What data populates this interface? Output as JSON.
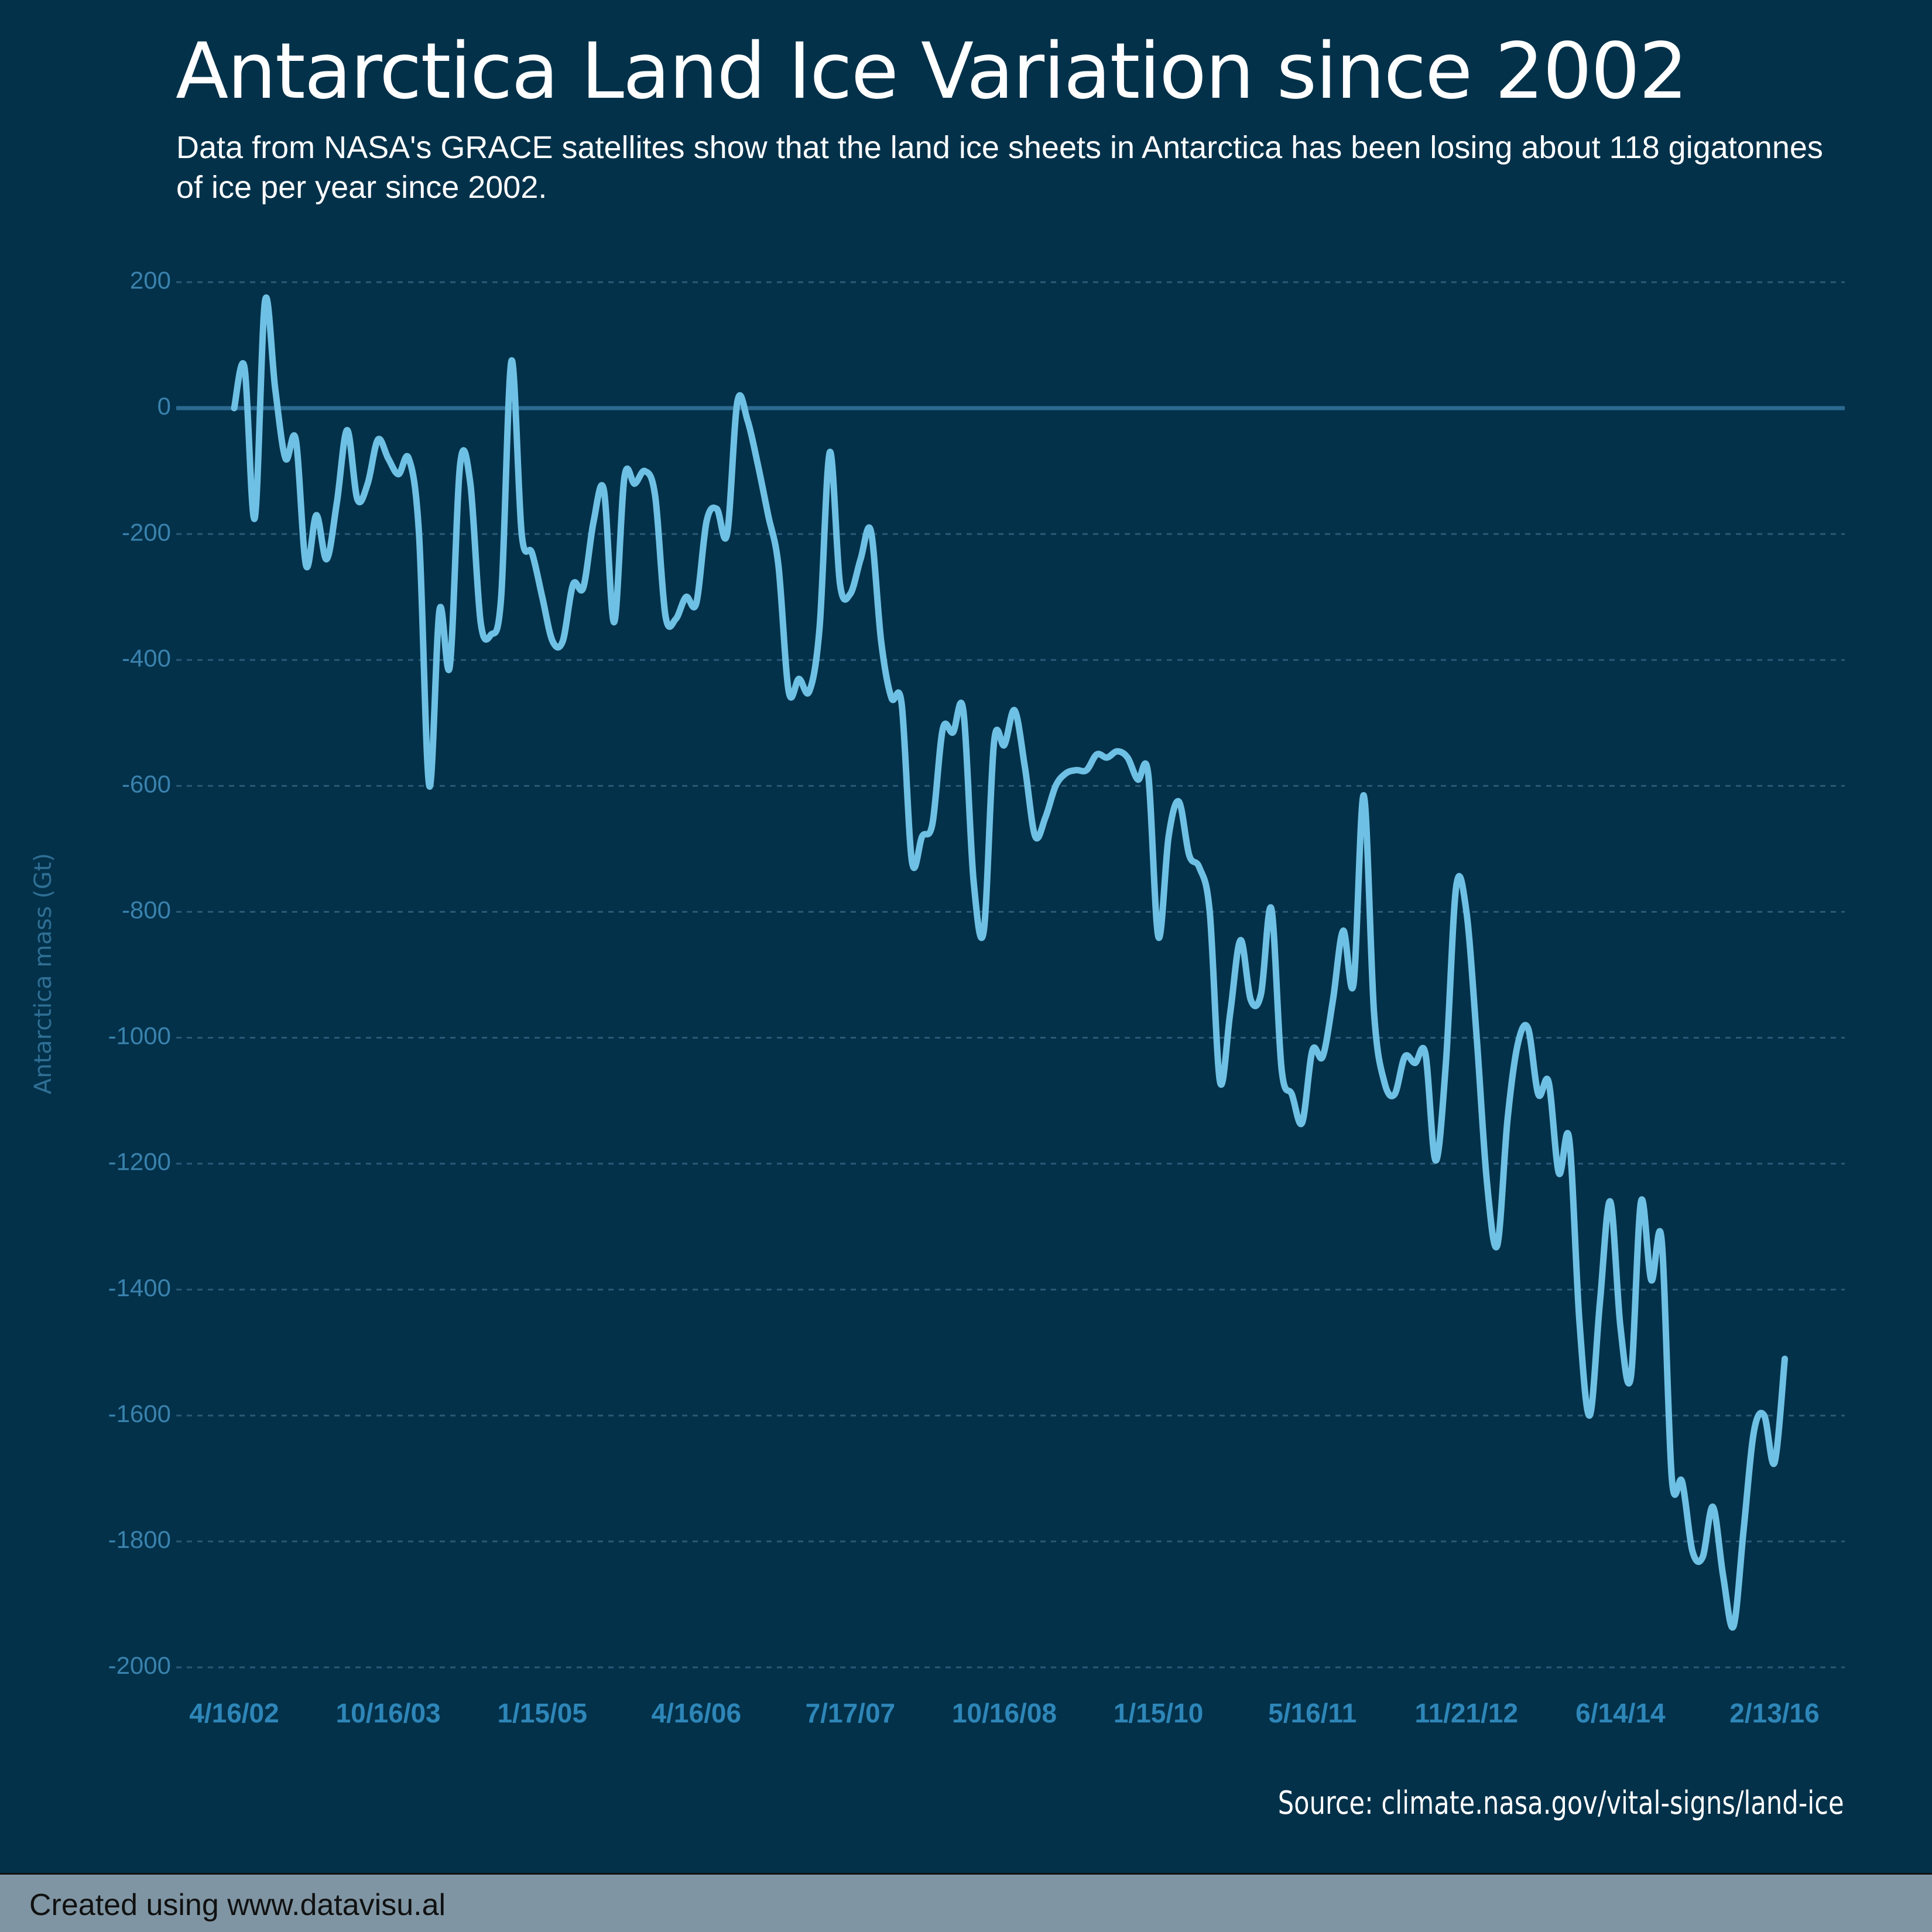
{
  "chart_data": {
    "type": "line",
    "title": "Antarctica Land Ice Variation since 2002",
    "subtitle": "Data from NASA's GRACE satellites show that the land ice sheets in Antarctica has been losing about 118 gigatonnes of ice per year since 2002.",
    "y_label": "Antarctica mass (Gt)",
    "source": "Source: climate.nasa.gov/vital-signs/land-ice",
    "footer": "Created using www.datavisu.al",
    "categories": [
      "4/16/02",
      null,
      null,
      null,
      null,
      null,
      null,
      null,
      null,
      null,
      null,
      null,
      null,
      null,
      null,
      "10/16/03",
      null,
      null,
      null,
      null,
      null,
      null,
      null,
      null,
      null,
      null,
      null,
      null,
      null,
      null,
      "1/15/05",
      null,
      null,
      null,
      null,
      null,
      null,
      null,
      null,
      null,
      null,
      null,
      null,
      null,
      null,
      "4/16/06",
      null,
      null,
      null,
      null,
      null,
      null,
      null,
      null,
      null,
      null,
      null,
      null,
      null,
      null,
      "7/17/07",
      null,
      null,
      null,
      null,
      null,
      null,
      null,
      null,
      null,
      null,
      null,
      null,
      null,
      null,
      "10/16/08",
      null,
      null,
      null,
      null,
      null,
      null,
      null,
      null,
      null,
      null,
      null,
      null,
      null,
      null,
      "1/15/10",
      null,
      null,
      null,
      null,
      null,
      null,
      null,
      null,
      null,
      null,
      null,
      null,
      null,
      null,
      "5/16/11",
      null,
      null,
      null,
      null,
      null,
      null,
      null,
      null,
      null,
      null,
      null,
      null,
      null,
      null,
      "11/21/12",
      null,
      null,
      null,
      null,
      null,
      null,
      null,
      null,
      null,
      null,
      null,
      null,
      null,
      null,
      "6/14/14",
      null,
      null,
      null,
      null,
      null,
      null,
      null,
      null,
      null,
      null,
      null,
      null,
      null,
      null,
      "2/13/16",
      null
    ],
    "series": [
      {
        "color": "#6ec1e4",
        "values": [
          0,
          65,
          -175,
          170,
          30,
          -80,
          -50,
          -250,
          -170,
          -240,
          -150,
          -35,
          -145,
          -120,
          -50,
          -80,
          -105,
          -80,
          -200,
          -600,
          -320,
          -410,
          -90,
          -120,
          -340,
          -360,
          -300,
          75,
          -200,
          -230,
          -300,
          -370,
          -370,
          -280,
          -285,
          -180,
          -130,
          -340,
          -110,
          -120,
          -100,
          -140,
          -330,
          -335,
          -300,
          -310,
          -180,
          -160,
          -200,
          10,
          -20,
          -90,
          -170,
          -250,
          -450,
          -430,
          -450,
          -350,
          -70,
          -280,
          -295,
          -240,
          -195,
          -370,
          -460,
          -470,
          -720,
          -680,
          -660,
          -510,
          -515,
          -480,
          -750,
          -830,
          -530,
          -535,
          -480,
          -570,
          -680,
          -650,
          -600,
          -580,
          -575,
          -575,
          -550,
          -555,
          -545,
          -555,
          -590,
          -580,
          -840,
          -680,
          -625,
          -710,
          -730,
          -800,
          -1070,
          -960,
          -845,
          -940,
          -930,
          -795,
          -1050,
          -1090,
          -1135,
          -1020,
          -1030,
          -940,
          -830,
          -915,
          -615,
          -960,
          -1070,
          -1090,
          -1030,
          -1040,
          -1025,
          -1195,
          -1040,
          -760,
          -800,
          -1000,
          -1230,
          -1330,
          -1130,
          -1010,
          -985,
          -1090,
          -1070,
          -1215,
          -1160,
          -1450,
          -1600,
          -1420,
          -1260,
          -1460,
          -1540,
          -1260,
          -1385,
          -1320,
          -1700,
          -1705,
          -1815,
          -1825,
          -1745,
          -1855,
          -1935,
          -1780,
          -1625,
          -1600,
          -1675,
          -1510
        ]
      }
    ],
    "ylim": [
      -2000,
      200
    ],
    "yticks": [
      -2000,
      -1800,
      -1600,
      -1400,
      -1200,
      -1000,
      -800,
      -600,
      -400,
      -200,
      0,
      200
    ],
    "grid": true
  }
}
